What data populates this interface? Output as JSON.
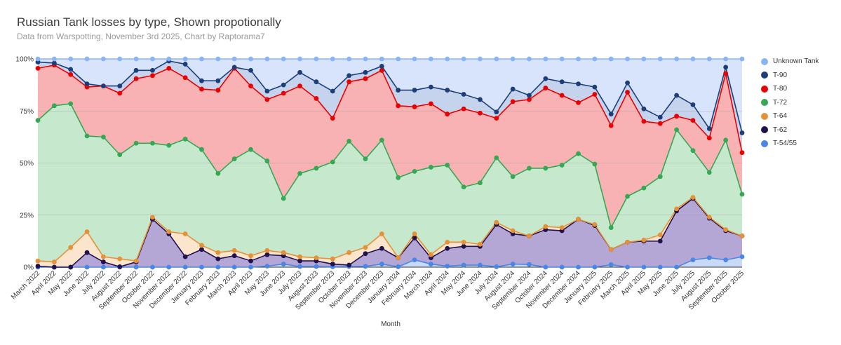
{
  "chart_data": {
    "type": "area",
    "stacked": "percent",
    "title": "Russian Tank losses by type, Shown propotionally",
    "subtitle": "Data from Warspotting, November 3rd 2025, Chart by Raptorama7",
    "xlabel": "Month",
    "ylabel": "",
    "ylim": [
      0,
      100
    ],
    "y_ticks": [
      "0%",
      "25%",
      "50%",
      "75%",
      "100%"
    ],
    "categories": [
      "March 2022",
      "April 2022",
      "May 2022",
      "June 2022",
      "July 2022",
      "August 2022",
      "September 2022",
      "October 2022",
      "November 2022",
      "December 2022",
      "January 2023",
      "February 2023",
      "March 2023",
      "April 2023",
      "May 2023",
      "June 2023",
      "July 2023",
      "August 2023",
      "September 2023",
      "October 2023",
      "November 2023",
      "December 2023",
      "January 2024",
      "February 2024",
      "March 2024",
      "April 2024",
      "May 2024",
      "June 2024",
      "July 2024",
      "August 2024",
      "September 2024",
      "October 2024",
      "November 2024",
      "December 2024",
      "January 2025",
      "February 2025",
      "March 2025",
      "April 2025",
      "May 2025",
      "June 2025",
      "July 2025",
      "August 2025",
      "September 2025",
      "October 2025"
    ],
    "cumulative_note": "values are cumulative percentage boundaries (top of each stacked band)",
    "series": [
      {
        "name": "T-54/55",
        "color": "#4a86e8",
        "fill": "#c9daf8",
        "values": [
          0,
          0,
          0,
          0,
          0,
          0,
          0,
          0,
          0,
          0,
          0,
          0,
          0,
          0,
          0.5,
          1.5,
          0.3,
          0.3,
          0.2,
          0.3,
          0.4,
          1.5,
          0.2,
          3.5,
          1.5,
          0.5,
          1,
          1,
          0.2,
          1.5,
          1.3,
          0,
          0,
          0,
          0,
          1.2,
          0,
          0,
          0,
          0,
          3.5,
          4.5,
          3.5,
          5
        ]
      },
      {
        "name": "T-62",
        "color": "#20124d",
        "fill": "#b4a7d6",
        "values": [
          0.5,
          0,
          0,
          7,
          2.5,
          0.2,
          2.5,
          23,
          16,
          5,
          8.5,
          4,
          5.5,
          3,
          6,
          5.5,
          3,
          3,
          1.5,
          1,
          6.5,
          9,
          4.5,
          14,
          4.5,
          9,
          10,
          10,
          20.5,
          16,
          15,
          18,
          17.5,
          23,
          20,
          8.5,
          12,
          12.5,
          12.5,
          27,
          33,
          23.5,
          17.5,
          15
        ]
      },
      {
        "name": "T-64",
        "color": "#e69138",
        "fill": "#fce5cd",
        "values": [
          3,
          2.5,
          9.5,
          17,
          5,
          4,
          3,
          24,
          17,
          16,
          10.5,
          7,
          8,
          5.5,
          8,
          7,
          5,
          4.5,
          4,
          7,
          9.5,
          16,
          4.5,
          16,
          6,
          12,
          12,
          11,
          21.5,
          17.5,
          15,
          19.5,
          19,
          23,
          20.5,
          8.5,
          12,
          13,
          15.5,
          28,
          33.5,
          24,
          18,
          15
        ]
      },
      {
        "name": "T-72",
        "color": "#34a853",
        "fill": "#c6e8cc",
        "values": [
          70.5,
          77.5,
          78.5,
          63,
          62.5,
          54,
          59.5,
          59.5,
          58.5,
          61.5,
          56.5,
          45,
          52,
          56.5,
          51,
          33,
          45,
          47.5,
          50.5,
          60.5,
          52,
          61,
          43,
          46,
          48,
          49,
          38.5,
          40.5,
          52.5,
          43.5,
          47.5,
          47.5,
          49,
          54.5,
          49.5,
          19,
          34,
          38,
          43.5,
          66,
          56,
          45.5,
          61,
          35
        ]
      },
      {
        "name": "T-80",
        "color": "#ea0000",
        "fill": "#f8b2b4",
        "values": [
          95.5,
          97,
          92.5,
          86.5,
          87,
          83.5,
          90.5,
          92,
          95.5,
          91,
          85.5,
          85,
          95.5,
          87,
          80.5,
          83.5,
          87,
          81,
          71.5,
          89,
          90.5,
          94.5,
          77.5,
          77,
          78.5,
          73.5,
          76,
          74,
          71.5,
          79.5,
          80.5,
          86,
          82.5,
          79,
          83,
          68,
          84,
          70,
          69,
          72.5,
          70.5,
          62,
          93,
          55
        ]
      },
      {
        "name": "T-90",
        "color": "#1c3f7a",
        "fill": "#c5d3ec",
        "values": [
          98.5,
          98,
          95,
          88,
          87,
          87,
          94.5,
          94.5,
          99,
          97.5,
          89.5,
          89.5,
          96,
          94.5,
          84.5,
          87.5,
          93.5,
          89,
          84.5,
          92,
          93.5,
          96.5,
          85,
          85,
          86.5,
          85,
          83,
          80.5,
          74.5,
          85.5,
          82.5,
          90.5,
          89,
          88,
          86.5,
          73.5,
          88.5,
          76,
          72,
          82.5,
          78,
          66.5,
          96,
          64.5
        ]
      },
      {
        "name": "Unknown Tank",
        "color": "#8ab4f8",
        "fill": "#d8e4fb",
        "values": [
          100,
          100,
          100,
          100,
          100,
          100,
          100,
          100,
          100,
          100,
          100,
          100,
          100,
          100,
          100,
          100,
          100,
          100,
          100,
          100,
          100,
          100,
          100,
          100,
          100,
          100,
          100,
          100,
          100,
          100,
          100,
          100,
          100,
          100,
          100,
          100,
          100,
          100,
          100,
          100,
          100,
          100,
          100,
          100
        ]
      }
    ],
    "legend": [
      "Unknown Tank",
      "T-90",
      "T-80",
      "T-72",
      "T-64",
      "T-62",
      "T-54/55"
    ],
    "legend_position": "right",
    "grid": true
  }
}
